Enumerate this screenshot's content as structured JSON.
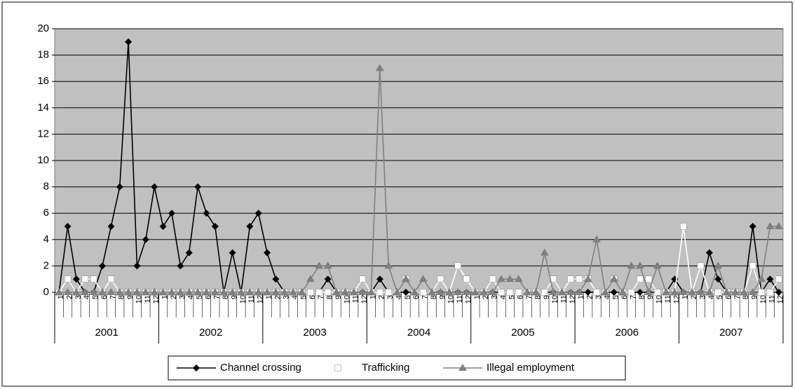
{
  "chart_data": {
    "type": "line",
    "categories": [
      "1",
      "2",
      "3",
      "4",
      "5",
      "6",
      "7",
      "8",
      "9",
      "10",
      "11",
      "12",
      "1",
      "2",
      "3",
      "4",
      "5",
      "6",
      "7",
      "8",
      "9",
      "10",
      "11",
      "12",
      "1",
      "2",
      "3",
      "4",
      "5",
      "6",
      "7",
      "8",
      "9",
      "10",
      "11",
      "12",
      "1",
      "2",
      "3",
      "4",
      "5",
      "6",
      "7",
      "8",
      "9",
      "10",
      "11",
      "12",
      "1",
      "2",
      "3",
      "4",
      "5",
      "6",
      "7",
      "8",
      "9",
      "10",
      "11",
      "12",
      "1",
      "2",
      "3",
      "4",
      "5",
      "6",
      "7",
      "8",
      "9",
      "10",
      "11",
      "12",
      "1",
      "2",
      "3",
      "4",
      "5",
      "6",
      "7",
      "8",
      "9",
      "10",
      "11",
      "12"
    ],
    "years": [
      "2001",
      "2002",
      "2003",
      "2004",
      "2005",
      "2006",
      "2007"
    ],
    "ylim": [
      0,
      20
    ],
    "yticks": [
      0,
      2,
      4,
      6,
      8,
      10,
      12,
      14,
      16,
      18,
      20
    ],
    "grid": true,
    "legend": "bottom",
    "series": [
      {
        "name": "Channel crossing",
        "color": "#000000",
        "marker": "diamond",
        "values": [
          0,
          5,
          1,
          0,
          0,
          2,
          5,
          8,
          19,
          2,
          4,
          8,
          5,
          6,
          2,
          3,
          8,
          6,
          5,
          0,
          3,
          0,
          5,
          6,
          3,
          1,
          0,
          0,
          0,
          0,
          0,
          1,
          0,
          0,
          0,
          0,
          0,
          1,
          0,
          0,
          0,
          0,
          0,
          0,
          0,
          0,
          0,
          0,
          0,
          0,
          0,
          0,
          0,
          0,
          0,
          0,
          0,
          0,
          0,
          0,
          0,
          0,
          0,
          0,
          0,
          0,
          0,
          0,
          0,
          0,
          0,
          1,
          0,
          0,
          0,
          3,
          1,
          0,
          0,
          0,
          5,
          0,
          1,
          0
        ]
      },
      {
        "name": "Trafficking",
        "color": "#ffffff",
        "marker": "square",
        "values": [
          0,
          1,
          0,
          1,
          1,
          0,
          1,
          0,
          0,
          0,
          0,
          0,
          0,
          0,
          0,
          0,
          0,
          0,
          0,
          0,
          0,
          0,
          0,
          0,
          0,
          0,
          0,
          0,
          0,
          0,
          0,
          0,
          0,
          0,
          0,
          1,
          0,
          0,
          0,
          0,
          1,
          0,
          0,
          0,
          1,
          0,
          2,
          1,
          0,
          0,
          1,
          0,
          0,
          0,
          0,
          0,
          0,
          1,
          0,
          1,
          1,
          1,
          0,
          0,
          1,
          0,
          0,
          1,
          1,
          0,
          0,
          0,
          5,
          0,
          2,
          0,
          0,
          0,
          0,
          0,
          2,
          0,
          0,
          1
        ]
      },
      {
        "name": "Illegal employment",
        "color": "#808080",
        "marker": "triangle",
        "values": [
          0,
          0,
          0,
          0,
          0,
          0,
          0,
          0,
          0,
          0,
          0,
          0,
          0,
          0,
          0,
          0,
          0,
          0,
          0,
          0,
          0,
          0,
          0,
          0,
          0,
          0,
          0,
          0,
          0,
          1,
          2,
          2,
          0,
          0,
          0,
          0,
          0,
          17,
          2,
          0,
          1,
          0,
          1,
          0,
          0,
          0,
          0,
          0,
          0,
          0,
          0,
          1,
          1,
          1,
          0,
          0,
          3,
          0,
          0,
          0,
          0,
          1,
          4,
          0,
          1,
          0,
          2,
          2,
          0,
          2,
          0,
          0,
          0,
          0,
          0,
          0,
          2,
          0,
          0,
          0,
          0,
          1,
          5,
          5
        ]
      }
    ]
  }
}
